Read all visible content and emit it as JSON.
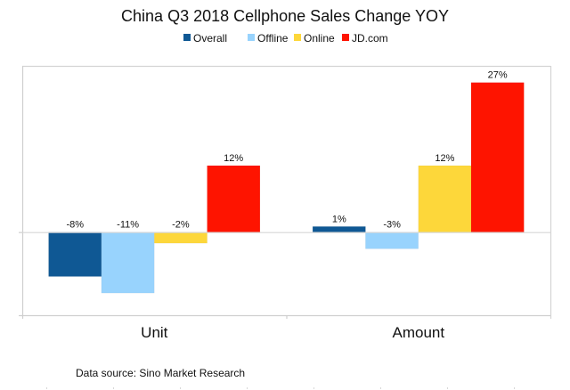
{
  "chart_data": {
    "type": "bar",
    "title": "China Q3 2018 Cellphone Sales Change YOY",
    "xlabel": "",
    "ylabel": "",
    "categories": [
      "Unit",
      "Amount"
    ],
    "series": [
      {
        "name": "Overall",
        "color": "#0f5894",
        "values": [
          -8,
          1
        ],
        "labels": [
          "-8%",
          "1%"
        ]
      },
      {
        "name": "Offline",
        "color": "#98d3fd",
        "values": [
          -11,
          -3
        ],
        "labels": [
          "-11%",
          "-3%"
        ]
      },
      {
        "name": "Online",
        "color": "#fdd73a",
        "values": [
          -2,
          12
        ],
        "labels": [
          "-2%",
          "12%"
        ]
      },
      {
        "name": "JD.com",
        "color": "#fe1400",
        "values": [
          12,
          27
        ],
        "labels": [
          "12%",
          "27%"
        ]
      }
    ],
    "ylim": [
      -15,
      30
    ],
    "value_unit": "%",
    "grid": false,
    "legend_position": "top-center",
    "source_note": "Data source: Sino Market Research"
  }
}
